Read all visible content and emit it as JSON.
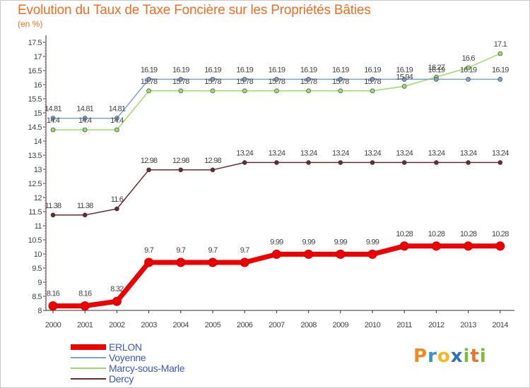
{
  "title": "Evolution du Taux de Taxe Foncière sur les Propriétés Bâties",
  "unit": "(en %)",
  "brand": {
    "letters": [
      "P",
      "r",
      "o",
      "x",
      "i",
      "t",
      "i"
    ],
    "colors": [
      "#f08a1c",
      "#3a8fd0",
      "#f4b820",
      "#2f6fbf",
      "#7dbd3b",
      "#e8742a",
      "#7dbd3b"
    ]
  },
  "chart_data": {
    "type": "line",
    "categories": [
      "2000",
      "2001",
      "2002",
      "2003",
      "2004",
      "2005",
      "2006",
      "2007",
      "2008",
      "2009",
      "2010",
      "2011",
      "2012",
      "2013",
      "2014"
    ],
    "ylim": [
      8,
      17.5
    ],
    "yticks": [
      "8",
      "8.5",
      "9",
      "9.5",
      "10",
      "10.5",
      "11",
      "11.5",
      "12",
      "12.5",
      "13",
      "13.5",
      "14",
      "14.5",
      "15",
      "15.5",
      "16",
      "16.5",
      "17",
      "17.5"
    ],
    "grid": false,
    "series": [
      {
        "name": "ERLON",
        "color": "#ee0000",
        "values": [
          8.16,
          8.16,
          8.32,
          9.7,
          9.7,
          9.7,
          9.7,
          9.99,
          9.99,
          9.99,
          9.99,
          10.28,
          10.28,
          10.28,
          10.28
        ],
        "labels": [
          "8.16",
          "8.16",
          "8.32",
          "9.7",
          "9.7",
          "9.7",
          "9.7",
          "9.99",
          "9.99",
          "9.99",
          "9.99",
          "10.28",
          "10.28",
          "10.28",
          "10.28"
        ]
      },
      {
        "name": "Voyenne",
        "color": "#7aa4c9",
        "values": [
          14.81,
          14.81,
          14.81,
          16.19,
          16.19,
          16.19,
          16.19,
          16.19,
          16.19,
          16.19,
          16.19,
          16.19,
          16.19,
          16.19,
          16.19
        ],
        "labels": [
          "14.81",
          "14.81",
          "14.81",
          "16.19",
          "16.19",
          "16.19",
          "16.19",
          "16.19",
          "16.19",
          "16.19",
          "16.19",
          "16.19",
          "16.19",
          "16.19",
          "16.19"
        ]
      },
      {
        "name": "Marcy-sous-Marle",
        "color": "#99dd66",
        "values": [
          14.4,
          14.4,
          14.4,
          15.78,
          15.78,
          15.78,
          15.78,
          15.78,
          15.78,
          15.78,
          15.78,
          15.94,
          16.27,
          16.6,
          17.1
        ],
        "labels": [
          "14.4",
          "14.4",
          "14.4",
          "15.78",
          "15.78",
          "15.78",
          "15.78",
          "15.78",
          "15.78",
          "15.78",
          "15.78",
          "15.94",
          "16.27",
          "16.6",
          "17.1"
        ]
      },
      {
        "name": "Dercy",
        "color": "#6b2b2b",
        "values": [
          11.38,
          11.38,
          11.6,
          12.98,
          12.98,
          12.98,
          13.24,
          13.24,
          13.24,
          13.24,
          13.24,
          13.24,
          13.24,
          13.24,
          13.24
        ],
        "labels": [
          "11.38",
          "11.38",
          "11.6",
          "12.98",
          "12.98",
          "12.98",
          "13.24",
          "13.24",
          "13.24",
          "13.24",
          "13.24",
          "13.24",
          "13.24",
          "13.24",
          "13.24"
        ]
      }
    ]
  }
}
